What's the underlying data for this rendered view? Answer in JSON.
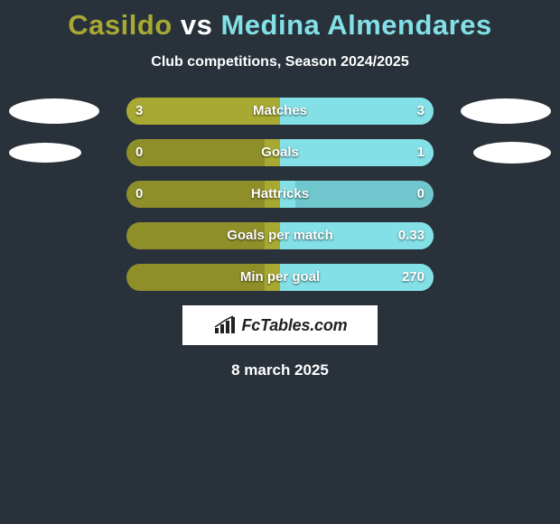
{
  "title": {
    "player1": "Casildo",
    "vs": "vs",
    "player2": "Medina Almendares"
  },
  "subtitle": "Club competitions, Season 2024/2025",
  "colors": {
    "player1": "#a7a932",
    "player2": "#83e0e6",
    "background": "#29323b",
    "track_min_p1": "#8f8f2a",
    "track_min_p2": "#6fc7cd"
  },
  "ellipse": {
    "rows": [
      {
        "left_w": 100,
        "left_h": 28,
        "right_w": 100,
        "right_h": 28,
        "show": true
      },
      {
        "left_w": 80,
        "left_h": 22,
        "right_w": 86,
        "right_h": 24,
        "show": true
      }
    ]
  },
  "metrics": [
    {
      "label": "Matches",
      "p1_value": "3",
      "p2_value": "3",
      "p1_pct": 100,
      "p2_pct": 100,
      "side_ellipse_idx": 0
    },
    {
      "label": "Goals",
      "p1_value": "0",
      "p2_value": "1",
      "p1_pct": 10,
      "p2_pct": 100,
      "side_ellipse_idx": 1
    },
    {
      "label": "Hattricks",
      "p1_value": "0",
      "p2_value": "0",
      "p1_pct": 10,
      "p2_pct": 10,
      "side_ellipse_idx": null
    },
    {
      "label": "Goals per match",
      "p1_value": "",
      "p2_value": "0.33",
      "p1_pct": 10,
      "p2_pct": 100,
      "side_ellipse_idx": null
    },
    {
      "label": "Min per goal",
      "p1_value": "",
      "p2_value": "270",
      "p1_pct": 10,
      "p2_pct": 100,
      "side_ellipse_idx": null
    }
  ],
  "brand": {
    "text": "FcTables.com"
  },
  "date": "8 march 2025"
}
